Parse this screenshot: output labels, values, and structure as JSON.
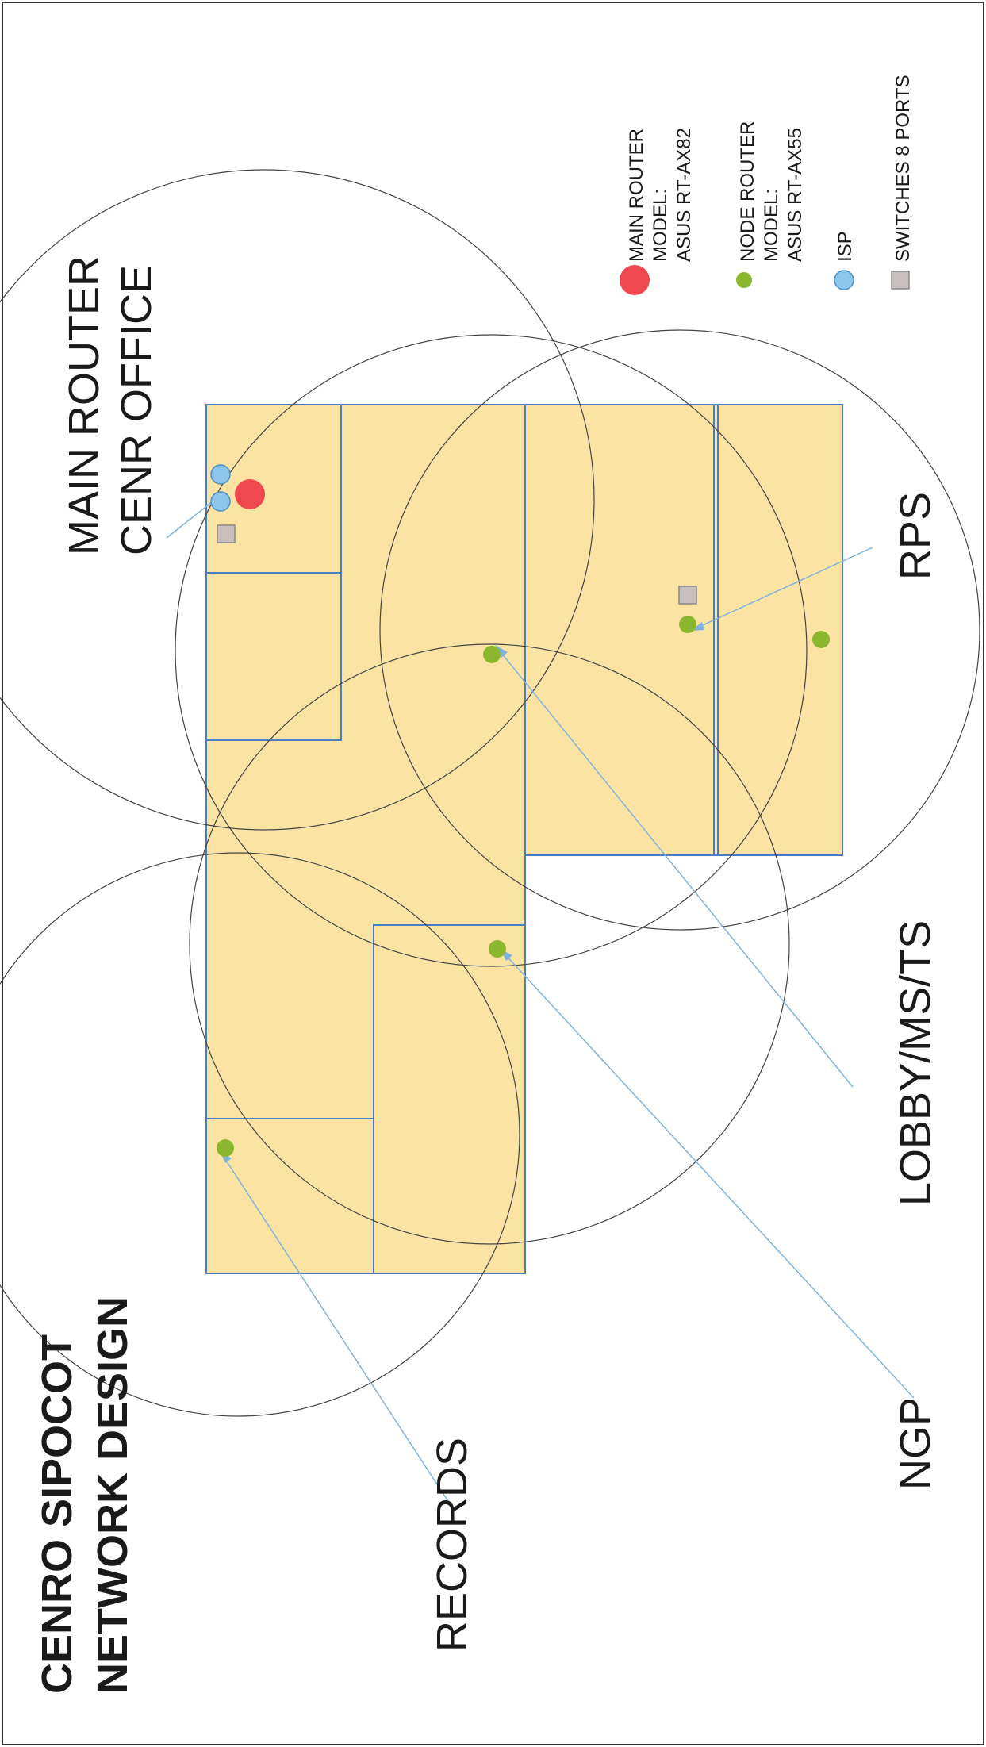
{
  "title": {
    "line1": "CENRO SIPOCOT",
    "line2": "NETWORK DESIGN"
  },
  "labels": {
    "main_router": {
      "line1": "MAIN ROUTER",
      "line2": "CENR OFFICE"
    },
    "rps": "RPS",
    "lobby": "LOBBY/MS/TS",
    "ngp": "NGP",
    "records": "RECORDS"
  },
  "legend": {
    "main_router": {
      "line1": "MAIN ROUTER",
      "line2": "MODEL:",
      "line3": "ASUS RT-AX82"
    },
    "node_router": {
      "line1": "NODE ROUTER",
      "line2": "MODEL:",
      "line3": "ASUS RT-AX55"
    },
    "isp": "ISP",
    "switches": "SWITCHES 8 PORTS"
  },
  "colors": {
    "floor_fill": "#fbe3a3",
    "wall_stroke": "#4a7cc4",
    "main_router": "#f0484f",
    "node_router": "#8ab72e",
    "isp": "#8dc6ea",
    "switch": "#c9bfbf",
    "coverage_circle": "#444444",
    "callout_line": "#7fb3de"
  },
  "icons": {
    "main_router": "red-circle",
    "node_router": "green-dot",
    "isp": "blue-circle",
    "switch": "gray-square"
  }
}
